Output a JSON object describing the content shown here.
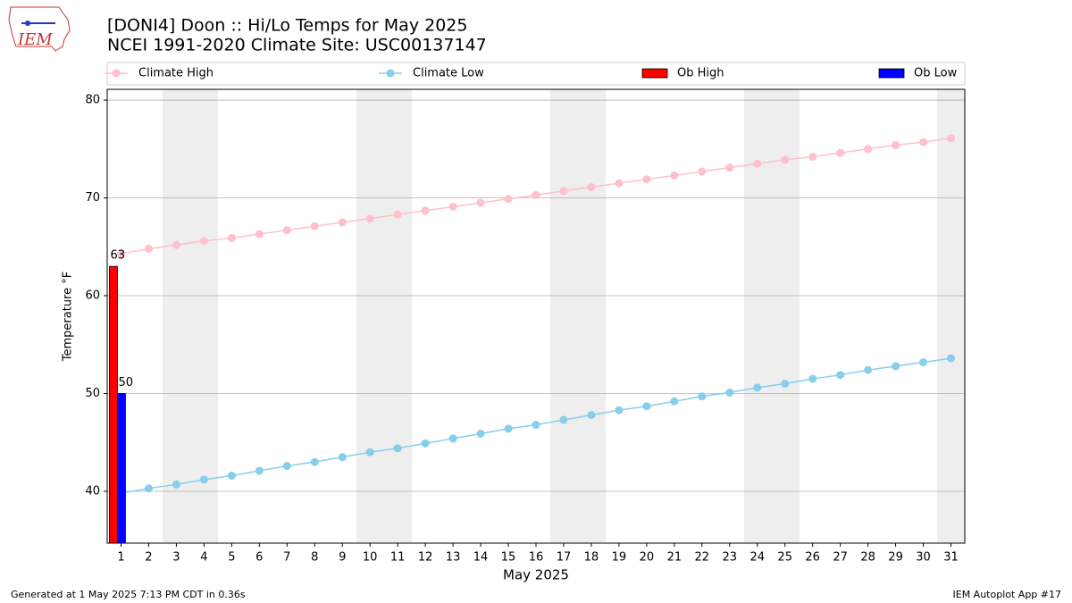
{
  "chart_data": {
    "type": "combo",
    "title": "[DONI4] Doon :: Hi/Lo Temps for May 2025",
    "subtitle": "NCEI 1991-2020 Climate Site: USC00137147",
    "logo_text": "IEM",
    "xlabel": "May 2025",
    "ylabel": "Temperature °F",
    "footer_left": "Generated at 1 May 2025 7:13 PM CDT in 0.36s",
    "footer_right": "IEM Autoplot App #17",
    "x": [
      1,
      2,
      3,
      4,
      5,
      6,
      7,
      8,
      9,
      10,
      11,
      12,
      13,
      14,
      15,
      16,
      17,
      18,
      19,
      20,
      21,
      22,
      23,
      24,
      25,
      26,
      27,
      28,
      29,
      30,
      31
    ],
    "series": [
      {
        "name": "Climate High",
        "type": "line",
        "color": "#ffc0cb",
        "values": [
          64.3,
          64.8,
          65.2,
          65.6,
          65.9,
          66.3,
          66.7,
          67.1,
          67.5,
          67.9,
          68.3,
          68.7,
          69.1,
          69.5,
          69.9,
          70.3,
          70.7,
          71.1,
          71.5,
          71.9,
          72.3,
          72.7,
          73.1,
          73.5,
          73.9,
          74.2,
          74.6,
          75.0,
          75.4,
          75.7,
          76.1
        ]
      },
      {
        "name": "Climate Low",
        "type": "line",
        "color": "#87ceeb",
        "values": [
          39.8,
          40.3,
          40.7,
          41.2,
          41.6,
          42.1,
          42.6,
          43.0,
          43.5,
          44.0,
          44.4,
          44.9,
          45.4,
          45.9,
          46.4,
          46.8,
          47.3,
          47.8,
          48.3,
          48.7,
          49.2,
          49.7,
          50.1,
          50.6,
          51.0,
          51.5,
          51.9,
          52.4,
          52.8,
          53.2,
          53.6
        ]
      },
      {
        "name": "Ob High",
        "type": "bar",
        "color": "#ff0000",
        "values": [
          63,
          null,
          null,
          null,
          null,
          null,
          null,
          null,
          null,
          null,
          null,
          null,
          null,
          null,
          null,
          null,
          null,
          null,
          null,
          null,
          null,
          null,
          null,
          null,
          null,
          null,
          null,
          null,
          null,
          null,
          null
        ]
      },
      {
        "name": "Ob Low",
        "type": "bar",
        "color": "#0000ff",
        "values": [
          50,
          null,
          null,
          null,
          null,
          null,
          null,
          null,
          null,
          null,
          null,
          null,
          null,
          null,
          null,
          null,
          null,
          null,
          null,
          null,
          null,
          null,
          null,
          null,
          null,
          null,
          null,
          null,
          null,
          null,
          null
        ]
      }
    ],
    "xlim": [
      0.5,
      31.5
    ],
    "xticks": [
      1,
      2,
      3,
      4,
      5,
      6,
      7,
      8,
      9,
      10,
      11,
      12,
      13,
      14,
      15,
      16,
      17,
      18,
      19,
      20,
      21,
      22,
      23,
      24,
      25,
      26,
      27,
      28,
      29,
      30,
      31
    ],
    "ylim": [
      34.7,
      81.1
    ],
    "yticks": [
      40,
      50,
      60,
      70,
      80
    ],
    "grid": true,
    "legend": "top"
  }
}
